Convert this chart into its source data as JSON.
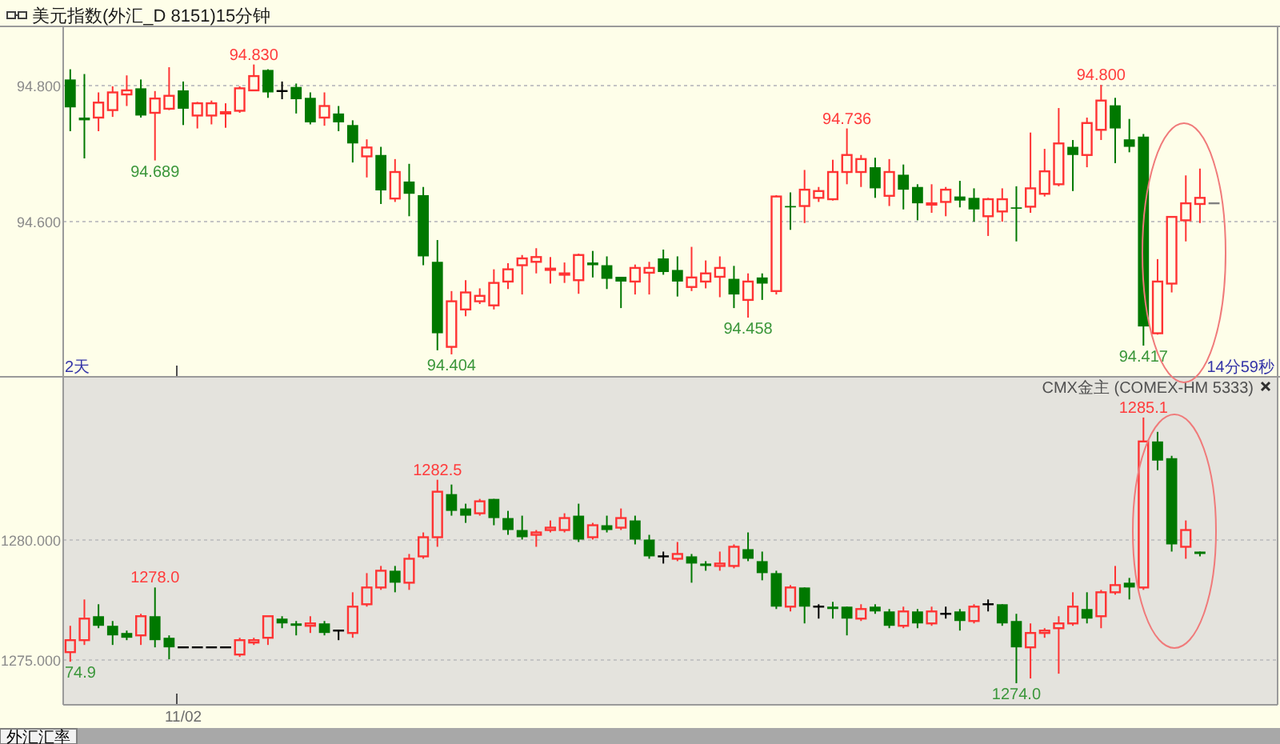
{
  "chart_data": [
    {
      "type": "candlestick",
      "title": "美元指数(外汇_D 8151)15分钟",
      "categories": [
        null,
        null,
        null,
        null,
        null,
        null,
        null,
        null,
        null,
        null,
        null,
        null,
        null,
        null,
        null,
        null,
        null,
        null,
        null,
        null,
        null,
        null,
        null,
        null,
        null,
        null,
        null,
        null,
        null,
        null,
        null,
        null,
        null,
        null,
        null,
        null,
        null,
        null,
        null,
        null,
        null,
        null,
        null,
        null,
        null,
        null,
        null,
        null,
        null,
        null,
        null,
        null,
        null,
        null,
        null,
        null,
        null,
        null,
        null,
        null,
        null,
        null,
        null,
        null,
        null,
        null,
        null,
        null,
        null,
        null,
        null,
        null,
        null,
        null,
        null,
        null,
        null,
        null,
        null,
        null,
        null,
        null,
        null,
        null,
        null,
        null
      ],
      "ohlc": [
        [
          94.808,
          94.823,
          94.732,
          94.767
        ],
        [
          94.752,
          94.816,
          94.692,
          94.748
        ],
        [
          94.752,
          94.789,
          94.732,
          94.774
        ],
        [
          94.763,
          94.798,
          94.753,
          94.789
        ],
        [
          94.786,
          94.814,
          94.769,
          94.792
        ],
        [
          94.795,
          94.808,
          94.752,
          94.755
        ],
        [
          94.759,
          94.791,
          94.689,
          94.78
        ],
        [
          94.765,
          94.826,
          94.763,
          94.784
        ],
        [
          94.792,
          94.805,
          94.741,
          94.765
        ],
        [
          94.755,
          94.775,
          94.736,
          94.773
        ],
        [
          94.755,
          94.777,
          94.742,
          94.773
        ],
        [
          94.758,
          94.773,
          94.737,
          94.76
        ],
        [
          94.762,
          94.798,
          94.759,
          94.795
        ],
        [
          94.792,
          94.83,
          94.791,
          94.813
        ],
        [
          94.822,
          94.823,
          94.781,
          94.789
        ],
        [
          94.791,
          94.805,
          94.779,
          94.791
        ],
        [
          94.797,
          94.802,
          94.758,
          94.779
        ],
        [
          94.781,
          94.789,
          94.742,
          94.745
        ],
        [
          94.752,
          94.789,
          94.74,
          94.769
        ],
        [
          94.758,
          94.769,
          94.732,
          94.745
        ],
        [
          94.741,
          94.748,
          94.686,
          94.714
        ],
        [
          94.695,
          94.72,
          94.664,
          94.708
        ],
        [
          94.697,
          94.709,
          94.625,
          94.645
        ],
        [
          94.633,
          94.691,
          94.628,
          94.672
        ],
        [
          94.658,
          94.684,
          94.607,
          94.64
        ],
        [
          94.638,
          94.65,
          94.535,
          94.548
        ],
        [
          94.54,
          94.572,
          94.41,
          94.435
        ],
        [
          94.415,
          94.497,
          94.404,
          94.482
        ],
        [
          94.47,
          94.513,
          94.46,
          94.495
        ],
        [
          94.482,
          94.501,
          94.478,
          94.49
        ],
        [
          94.476,
          94.529,
          94.47,
          94.509
        ],
        [
          94.511,
          94.538,
          94.5,
          94.529
        ],
        [
          94.535,
          94.55,
          94.492,
          94.545
        ],
        [
          94.54,
          94.56,
          94.523,
          94.547
        ],
        [
          94.529,
          94.547,
          94.508,
          94.53
        ],
        [
          94.521,
          94.539,
          94.509,
          94.523
        ],
        [
          94.513,
          94.552,
          94.493,
          94.55
        ],
        [
          94.539,
          94.556,
          94.517,
          94.535
        ],
        [
          94.535,
          94.548,
          94.5,
          94.515
        ],
        [
          94.518,
          94.518,
          94.472,
          94.511
        ],
        [
          94.511,
          94.536,
          94.492,
          94.531
        ],
        [
          94.524,
          94.54,
          94.492,
          94.531
        ],
        [
          94.545,
          94.558,
          94.521,
          94.525
        ],
        [
          94.528,
          94.548,
          94.489,
          94.511
        ],
        [
          94.503,
          94.562,
          94.497,
          94.517
        ],
        [
          94.511,
          94.542,
          94.501,
          94.523
        ],
        [
          94.518,
          94.548,
          94.488,
          94.531
        ],
        [
          94.515,
          94.534,
          94.472,
          94.492
        ],
        [
          94.484,
          94.523,
          94.458,
          94.511
        ],
        [
          94.517,
          94.523,
          94.484,
          94.508
        ],
        [
          94.497,
          94.638,
          94.492,
          94.636
        ],
        [
          94.622,
          94.642,
          94.587,
          94.62
        ],
        [
          94.622,
          94.675,
          94.597,
          94.646
        ],
        [
          94.634,
          94.65,
          94.628,
          94.644
        ],
        [
          94.632,
          94.69,
          94.63,
          94.672
        ],
        [
          94.672,
          94.736,
          94.654,
          94.697
        ],
        [
          94.672,
          94.697,
          94.65,
          94.691
        ],
        [
          94.679,
          94.693,
          94.634,
          94.648
        ],
        [
          94.637,
          94.691,
          94.622,
          94.672
        ],
        [
          94.668,
          94.683,
          94.617,
          94.646
        ],
        [
          94.65,
          94.654,
          94.601,
          94.626
        ],
        [
          94.624,
          94.654,
          94.612,
          94.626
        ],
        [
          94.628,
          94.65,
          94.607,
          94.646
        ],
        [
          94.636,
          94.659,
          94.62,
          94.63
        ],
        [
          94.634,
          94.648,
          94.599,
          94.617
        ],
        [
          94.607,
          94.634,
          94.578,
          94.632
        ],
        [
          94.614,
          94.648,
          94.599,
          94.632
        ],
        [
          94.62,
          94.651,
          94.57,
          94.618
        ],
        [
          94.621,
          94.73,
          94.612,
          94.648
        ],
        [
          94.64,
          94.706,
          94.636,
          94.673
        ],
        [
          94.654,
          94.766,
          94.651,
          94.714
        ],
        [
          94.709,
          94.719,
          94.644,
          94.697
        ],
        [
          94.697,
          94.752,
          94.679,
          94.744
        ],
        [
          94.734,
          94.8,
          94.719,
          94.777
        ],
        [
          94.77,
          94.781,
          94.685,
          94.736
        ],
        [
          94.72,
          94.75,
          94.701,
          94.709
        ],
        [
          94.724,
          94.728,
          94.417,
          94.445
        ],
        [
          94.435,
          94.544,
          94.433,
          94.511
        ],
        [
          94.508,
          94.607,
          94.495,
          94.606
        ],
        [
          94.601,
          94.667,
          94.57,
          94.626
        ],
        [
          94.625,
          94.677,
          94.597,
          94.634
        ],
        [
          94.626,
          94.626,
          94.626,
          94.626
        ],
        null,
        null,
        null,
        null
      ],
      "colors": [
        "#007800",
        "#007800",
        "#ff3333",
        "#ff3333",
        "#ff3333",
        "#007800",
        "#ff3333",
        "#ff3333",
        "#007800",
        "#ff3333",
        "#ff3333",
        "#ff3333",
        "#ff3333",
        "#ff3333",
        "#007800",
        "#000000",
        "#007800",
        "#007800",
        "#ff3333",
        "#007800",
        "#007800",
        "#ff3333",
        "#007800",
        "#ff3333",
        "#007800",
        "#007800",
        "#007800",
        "#ff3333",
        "#ff3333",
        "#ff3333",
        "#ff3333",
        "#ff3333",
        "#ff3333",
        "#ff3333",
        "#ff3333",
        "#ff3333",
        "#ff3333",
        "#007800",
        "#007800",
        "#007800",
        "#ff3333",
        "#ff3333",
        "#007800",
        "#007800",
        "#ff3333",
        "#ff3333",
        "#ff3333",
        "#007800",
        "#ff3333",
        "#007800",
        "#ff3333",
        "#007800",
        "#ff3333",
        "#ff3333",
        "#ff3333",
        "#ff3333",
        "#ff3333",
        "#007800",
        "#ff3333",
        "#007800",
        "#007800",
        "#ff3333",
        "#ff3333",
        "#007800",
        "#007800",
        "#ff3333",
        "#ff3333",
        "#007800",
        "#ff3333",
        "#ff3333",
        "#ff3333",
        "#007800",
        "#ff3333",
        "#ff3333",
        "#007800",
        "#007800",
        "#007800",
        "#ff3333",
        "#ff3333",
        "#ff3333",
        "#ff3333",
        "#808080",
        null,
        null,
        null,
        null
      ],
      "ylim": [
        94.371,
        94.886
      ],
      "yticks": [
        {
          "value": 94.8,
          "label": "94.800"
        },
        {
          "value": 94.6,
          "label": "94.600"
        }
      ],
      "grid": "y",
      "tick_labels": "y",
      "annotations": [
        "2天",
        "14分59秒",
        "94.830",
        "94.689",
        "94.404",
        "94.458",
        "94.736",
        "94.800",
        "94.417"
      ]
    },
    {
      "type": "candlestick",
      "title": "CMX金主 (COMEX-HM 5333)",
      "categories": [
        null,
        null,
        null,
        null,
        null,
        null,
        null,
        null,
        "11/02",
        null,
        null,
        null,
        null,
        null,
        null,
        null,
        null,
        null,
        null,
        null,
        null,
        null,
        null,
        null,
        null,
        null,
        null,
        null,
        null,
        null,
        null,
        null,
        null,
        null,
        null,
        null,
        null,
        null,
        null,
        null,
        null,
        null,
        null,
        null,
        null,
        null,
        null,
        null,
        null,
        null,
        null,
        null,
        null,
        null,
        null,
        null,
        null,
        null,
        null,
        null,
        null,
        null,
        null,
        null,
        null,
        null,
        null,
        null,
        null,
        null,
        null,
        null,
        null,
        null,
        null,
        null,
        null,
        null,
        null,
        null,
        null,
        null,
        null,
        null,
        null,
        null
      ],
      "ohlc": [
        [
          1275.3,
          1276.4,
          1274.9,
          1275.8
        ],
        [
          1275.8,
          1277.5,
          1275.6,
          1276.7
        ],
        [
          1276.8,
          1277.3,
          1276.3,
          1276.4
        ],
        [
          1276.4,
          1276.6,
          1275.6,
          1276.0
        ],
        [
          1276.1,
          1276.2,
          1275.8,
          1275.9
        ],
        [
          1276.0,
          1276.9,
          1275.6,
          1276.8
        ],
        [
          1276.8,
          1278.0,
          1275.5,
          1275.8
        ],
        [
          1275.9,
          1276.0,
          1275.0,
          1275.5
        ],
        [
          1275.5,
          1275.5,
          1275.5,
          1275.5
        ],
        [
          1275.5,
          1275.5,
          1275.5,
          1275.5
        ],
        [
          1275.5,
          1275.5,
          1275.5,
          1275.5
        ],
        [
          1275.5,
          1275.5,
          1275.5,
          1275.5
        ],
        [
          1275.2,
          1275.9,
          1275.1,
          1275.8
        ],
        [
          1275.7,
          1275.9,
          1275.6,
          1275.8
        ],
        [
          1275.9,
          1276.8,
          1275.6,
          1276.8
        ],
        [
          1276.7,
          1276.8,
          1276.3,
          1276.5
        ],
        [
          1276.5,
          1276.6,
          1276.0,
          1276.4
        ],
        [
          1276.4,
          1276.8,
          1276.1,
          1276.5
        ],
        [
          1276.5,
          1276.6,
          1276.0,
          1276.1
        ],
        [
          1276.2,
          1276.2,
          1275.8,
          1276.2
        ],
        [
          1276.1,
          1277.8,
          1275.9,
          1277.2
        ],
        [
          1277.3,
          1278.6,
          1277.2,
          1278.0
        ],
        [
          1278.0,
          1278.9,
          1277.9,
          1278.7
        ],
        [
          1278.7,
          1278.9,
          1277.8,
          1278.2
        ],
        [
          1278.2,
          1279.4,
          1277.9,
          1279.2
        ],
        [
          1279.3,
          1280.3,
          1279.2,
          1280.1
        ],
        [
          1280.1,
          1282.5,
          1279.7,
          1282.0
        ],
        [
          1281.9,
          1282.3,
          1281.0,
          1281.2
        ],
        [
          1281.3,
          1281.5,
          1280.7,
          1281.0
        ],
        [
          1281.1,
          1281.7,
          1281.0,
          1281.6
        ],
        [
          1281.7,
          1281.7,
          1280.6,
          1280.9
        ],
        [
          1280.9,
          1281.2,
          1280.2,
          1280.4
        ],
        [
          1280.4,
          1281.0,
          1280.0,
          1280.1
        ],
        [
          1280.2,
          1280.4,
          1279.7,
          1280.3
        ],
        [
          1280.4,
          1280.8,
          1280.3,
          1280.5
        ],
        [
          1280.4,
          1281.1,
          1280.3,
          1280.9
        ],
        [
          1281.0,
          1281.5,
          1279.9,
          1280.0
        ],
        [
          1280.1,
          1280.7,
          1280.0,
          1280.6
        ],
        [
          1280.6,
          1281.0,
          1280.3,
          1280.4
        ],
        [
          1280.5,
          1281.3,
          1280.4,
          1280.9
        ],
        [
          1280.8,
          1281.0,
          1279.8,
          1280.0
        ],
        [
          1280.0,
          1280.2,
          1279.2,
          1279.3
        ],
        [
          1279.3,
          1279.5,
          1279.0,
          1279.3
        ],
        [
          1279.2,
          1279.9,
          1279.1,
          1279.4
        ],
        [
          1279.3,
          1279.4,
          1278.2,
          1279.0
        ],
        [
          1279.0,
          1279.1,
          1278.7,
          1278.9
        ],
        [
          1278.9,
          1279.5,
          1278.7,
          1279.0
        ],
        [
          1278.9,
          1279.8,
          1278.8,
          1279.7
        ],
        [
          1279.6,
          1280.3,
          1279.1,
          1279.2
        ],
        [
          1279.1,
          1279.5,
          1278.3,
          1278.6
        ],
        [
          1278.6,
          1278.7,
          1277.1,
          1277.2
        ],
        [
          1277.2,
          1278.1,
          1277.0,
          1278.0
        ],
        [
          1278.0,
          1278.0,
          1276.5,
          1277.2
        ],
        [
          1277.2,
          1277.3,
          1276.7,
          1277.2
        ],
        [
          1277.2,
          1277.4,
          1276.7,
          1277.1
        ],
        [
          1277.2,
          1277.2,
          1276.0,
          1276.7
        ],
        [
          1276.7,
          1277.3,
          1276.6,
          1277.1
        ],
        [
          1277.2,
          1277.3,
          1276.9,
          1277.0
        ],
        [
          1277.0,
          1277.1,
          1276.3,
          1276.4
        ],
        [
          1276.4,
          1277.2,
          1276.3,
          1277.0
        ],
        [
          1277.0,
          1277.1,
          1276.3,
          1276.5
        ],
        [
          1276.5,
          1277.2,
          1276.4,
          1277.0
        ],
        [
          1276.9,
          1277.2,
          1276.7,
          1276.9
        ],
        [
          1277.0,
          1277.1,
          1276.2,
          1276.6
        ],
        [
          1276.6,
          1277.3,
          1276.5,
          1277.2
        ],
        [
          1277.3,
          1277.5,
          1277.0,
          1277.3
        ],
        [
          1277.3,
          1277.3,
          1276.4,
          1276.5
        ],
        [
          1276.6,
          1276.9,
          1274.0,
          1275.5
        ],
        [
          1275.5,
          1276.5,
          1274.2,
          1276.1
        ],
        [
          1276.1,
          1276.3,
          1275.9,
          1276.2
        ],
        [
          1276.3,
          1276.8,
          1274.4,
          1276.5
        ],
        [
          1276.5,
          1277.8,
          1276.4,
          1277.2
        ],
        [
          1277.1,
          1277.8,
          1276.5,
          1276.7
        ],
        [
          1276.8,
          1277.9,
          1276.3,
          1277.8
        ],
        [
          1277.8,
          1278.9,
          1277.7,
          1278.1
        ],
        [
          1278.2,
          1278.4,
          1277.5,
          1278.0
        ],
        [
          1278.0,
          1285.1,
          1277.9,
          1284.1
        ],
        [
          1284.1,
          1284.5,
          1282.9,
          1283.3
        ],
        [
          1283.4,
          1283.5,
          1279.5,
          1279.8
        ],
        [
          1279.7,
          1280.8,
          1279.2,
          1280.4
        ],
        [
          1279.5,
          1279.5,
          1279.3,
          1279.4
        ],
        null,
        null,
        null,
        null,
        null
      ],
      "colors": [
        "#ff3333",
        "#ff3333",
        "#007800",
        "#007800",
        "#007800",
        "#ff3333",
        "#007800",
        "#007800",
        "#000000",
        "#000000",
        "#000000",
        "#000000",
        "#ff3333",
        "#ff3333",
        "#ff3333",
        "#007800",
        "#007800",
        "#ff3333",
        "#007800",
        "#000000",
        "#ff3333",
        "#ff3333",
        "#ff3333",
        "#007800",
        "#ff3333",
        "#ff3333",
        "#ff3333",
        "#007800",
        "#007800",
        "#ff3333",
        "#007800",
        "#007800",
        "#007800",
        "#ff3333",
        "#ff3333",
        "#ff3333",
        "#007800",
        "#ff3333",
        "#007800",
        "#ff3333",
        "#007800",
        "#007800",
        "#000000",
        "#ff3333",
        "#007800",
        "#007800",
        "#ff3333",
        "#ff3333",
        "#007800",
        "#007800",
        "#007800",
        "#ff3333",
        "#007800",
        "#000000",
        "#007800",
        "#007800",
        "#ff3333",
        "#007800",
        "#007800",
        "#ff3333",
        "#007800",
        "#ff3333",
        "#000000",
        "#007800",
        "#ff3333",
        "#000000",
        "#007800",
        "#007800",
        "#ff3333",
        "#ff3333",
        "#ff3333",
        "#ff3333",
        "#007800",
        "#ff3333",
        "#ff3333",
        "#007800",
        "#ff3333",
        "#007800",
        "#007800",
        "#ff3333",
        "#007800",
        null,
        null,
        null,
        null,
        null
      ],
      "ylim": [
        1273.1,
        1286.8
      ],
      "yticks": [
        {
          "value": 1280,
          "label": "1280.000"
        },
        {
          "value": 1275,
          "label": "1275.000"
        }
      ],
      "grid": "y",
      "annotations": [
        "外汇汇率",
        "74.9",
        "1278.0",
        "1282.5",
        "1274.0",
        "1285.1"
      ]
    }
  ]
}
